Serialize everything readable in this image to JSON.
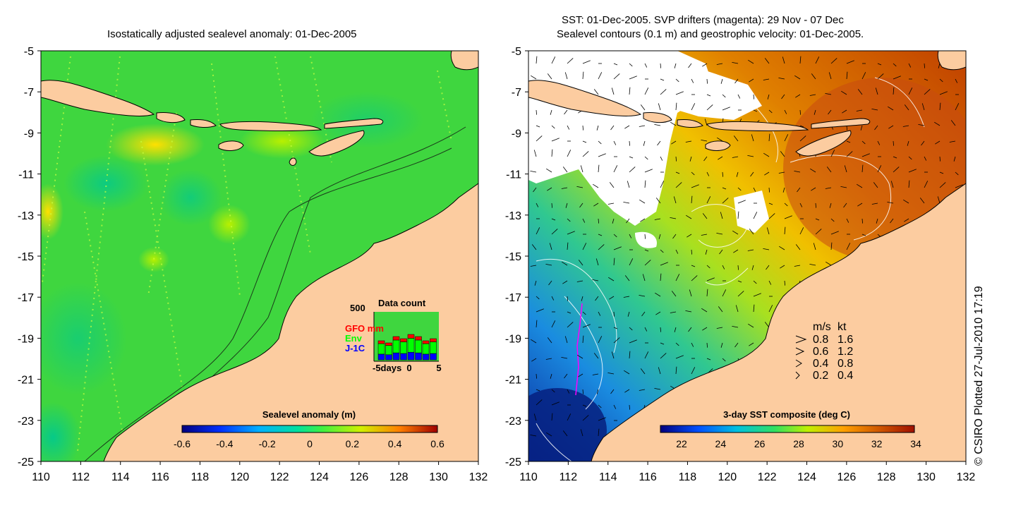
{
  "left_map": {
    "title": "Isostatically adjusted sealevel anomaly: 01-Dec-2005",
    "y_ticks": [
      "-5",
      "-7",
      "-9",
      "-11",
      "-13",
      "-15",
      "-17",
      "-19",
      "-21",
      "-23",
      "-25"
    ],
    "x_ticks": [
      "110",
      "112",
      "114",
      "116",
      "118",
      "120",
      "122",
      "124",
      "126",
      "128",
      "130",
      "132"
    ],
    "colorbar": {
      "label": "Sealevel anomaly (m)",
      "ticks": [
        "-0.6",
        "-0.4",
        "-0.2",
        "0",
        "0.2",
        "0.4",
        "0.6"
      ]
    },
    "inset": {
      "title": "Data count",
      "max_label": "500",
      "legend": [
        {
          "label": "GFO mm",
          "color": "#ff0000"
        },
        {
          "label": "Env",
          "color": "#00ff00"
        },
        {
          "label": "J-1C",
          "color": "#0000ff"
        }
      ],
      "x_labels": [
        "-5days",
        "0",
        "5"
      ],
      "bars": [
        0.45,
        0.4,
        0.55,
        0.5,
        0.6,
        0.55,
        0.45,
        0.5
      ]
    }
  },
  "right_map": {
    "title_line1": "SST: 01-Dec-2005. SVP drifters (magenta): 29 Nov - 07 Dec",
    "title_line2": "Sealevel contours (0.1 m) and geostrophic velocity: 01-Dec-2005.",
    "y_ticks": [
      "-5",
      "-7",
      "-9",
      "-11",
      "-13",
      "-15",
      "-17",
      "-19",
      "-21",
      "-23",
      "-25"
    ],
    "x_ticks": [
      "110",
      "112",
      "114",
      "116",
      "118",
      "120",
      "122",
      "124",
      "126",
      "128",
      "130",
      "132"
    ],
    "colorbar": {
      "label": "3-day SST composite (deg C)",
      "ticks": [
        "22",
        "24",
        "26",
        "28",
        "30",
        "32",
        "34"
      ]
    },
    "velocity_legend": {
      "header_ms": "m/s",
      "header_kt": "kt",
      "rows": [
        {
          "ms": "0.8",
          "kt": "1.6"
        },
        {
          "ms": "0.6",
          "kt": "1.2"
        },
        {
          "ms": "0.4",
          "kt": "0.8"
        },
        {
          "ms": "0.2",
          "kt": "0.4"
        }
      ]
    }
  },
  "credit": "© CSIRO Plotted 27-Jul-2010 17:19",
  "colors": {
    "land": "#fccca0",
    "sla_green": "#3fd63f",
    "sst_orange": "#e07a10"
  }
}
